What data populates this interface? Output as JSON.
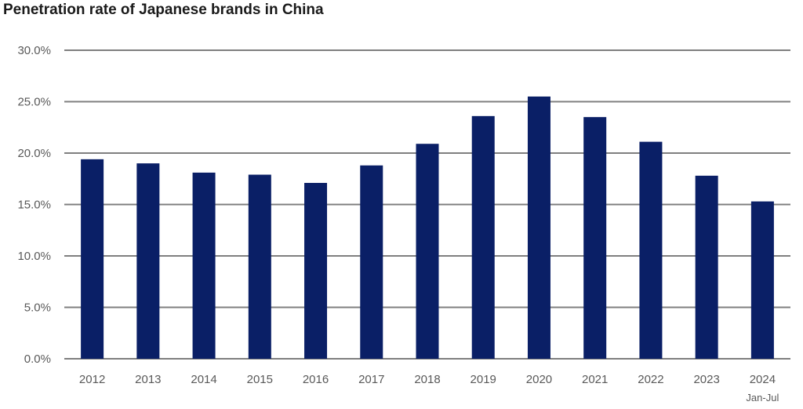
{
  "chart_data": {
    "type": "bar",
    "title": "Penetration rate of Japanese brands in China",
    "xlabel": "",
    "ylabel": "",
    "categories": [
      "2012",
      "2013",
      "2014",
      "2015",
      "2016",
      "2017",
      "2018",
      "2019",
      "2020",
      "2021",
      "2022",
      "2023",
      "2024"
    ],
    "category_sublabels": [
      "",
      "",
      "",
      "",
      "",
      "",
      "",
      "",
      "",
      "",
      "",
      "",
      "Jan-Jul"
    ],
    "series": [
      {
        "name": "Penetration rate",
        "values": [
          19.4,
          19.0,
          18.1,
          17.9,
          17.1,
          18.8,
          20.9,
          23.6,
          25.5,
          23.5,
          21.1,
          17.8,
          15.3
        ]
      }
    ],
    "ylim": [
      0,
      30
    ],
    "yticks": [
      0,
      5,
      10,
      15,
      20,
      25,
      30
    ],
    "ytick_labels": [
      "0.0%",
      "5.0%",
      "10.0%",
      "15.0%",
      "20.0%",
      "25.0%",
      "30.0%"
    ],
    "grid": true,
    "legend": "none",
    "colors": {
      "bar": "#0a1f66",
      "grid": "#7f7f7f",
      "axis": "#7f7f7f",
      "text": "#595959"
    }
  }
}
